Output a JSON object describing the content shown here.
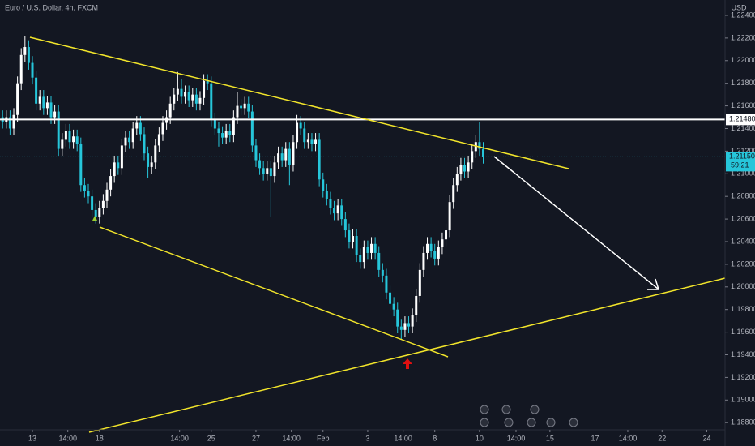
{
  "chart_data": {
    "type": "candlestick",
    "title": "Euro / U.S. Dollar, 4h, FXCM",
    "currency": "USD",
    "colors": {
      "up": "#ffffff",
      "down": "#26c6da"
    },
    "xlim": [
      -0.7,
      193.9
    ],
    "xticks": [
      {
        "value": 8,
        "label": "13"
      },
      {
        "value": 17.5,
        "label": "14:00"
      },
      {
        "value": 26,
        "label": "18"
      },
      {
        "value": 47.5,
        "label": "14:00"
      },
      {
        "value": 56,
        "label": "25"
      },
      {
        "value": 68,
        "label": "27"
      },
      {
        "value": 77.5,
        "label": "14:00"
      },
      {
        "value": 86,
        "label": "Feb"
      },
      {
        "value": 98,
        "label": "3"
      },
      {
        "value": 107.5,
        "label": "14:00"
      },
      {
        "value": 116,
        "label": "8"
      },
      {
        "value": 128,
        "label": "10"
      },
      {
        "value": 137.8,
        "label": "14:00"
      },
      {
        "value": 146.9,
        "label": "15"
      },
      {
        "value": 159,
        "label": "17"
      },
      {
        "value": 167.8,
        "label": "14:00"
      },
      {
        "value": 177,
        "label": "22"
      },
      {
        "value": 189,
        "label": "24"
      }
    ],
    "ylim": [
      1.18737,
      1.22536
    ],
    "yticks": [
      {
        "value": 1.224,
        "label": "1.22400"
      },
      {
        "value": 1.222,
        "label": "1.22200"
      },
      {
        "value": 1.22,
        "label": "1.22000"
      },
      {
        "value": 1.218,
        "label": "1.21800"
      },
      {
        "value": 1.216,
        "label": "1.21600"
      },
      {
        "value": 1.214,
        "label": "1.21400"
      },
      {
        "value": 1.212,
        "label": "1.21200"
      },
      {
        "value": 1.21,
        "label": "1.21000"
      },
      {
        "value": 1.208,
        "label": "1.20800"
      },
      {
        "value": 1.206,
        "label": "1.20600"
      },
      {
        "value": 1.204,
        "label": "1.20400"
      },
      {
        "value": 1.202,
        "label": "1.20200"
      },
      {
        "value": 1.2,
        "label": "1.20000"
      },
      {
        "value": 1.198,
        "label": "1.19800"
      },
      {
        "value": 1.196,
        "label": "1.19600"
      },
      {
        "value": 1.194,
        "label": "1.19400"
      },
      {
        "value": 1.192,
        "label": "1.19200"
      },
      {
        "value": 1.19,
        "label": "1.19000"
      },
      {
        "value": 1.188,
        "label": "1.18800"
      }
    ],
    "horizontal_line": {
      "value": 1.2148,
      "label": "1.21480"
    },
    "last_price": {
      "value": 1.2115,
      "label": "1.21150",
      "countdown": "59:21"
    },
    "open": [
      1.215,
      1.2146,
      1.215,
      1.214,
      1.2152,
      1.218,
      1.2205,
      1.2212,
      1.2198,
      1.2185,
      1.2162,
      1.2168,
      1.2158,
      1.2163,
      1.215,
      1.2155,
      1.2122,
      1.213,
      1.2138,
      1.2128,
      1.2133,
      1.2126,
      1.209,
      1.2085,
      1.208,
      1.2068,
      1.2062,
      1.207,
      1.2076,
      1.2086,
      1.2098,
      1.211,
      1.2105,
      1.2125,
      1.2132,
      1.2128,
      1.214,
      1.2145,
      1.2135,
      1.2118,
      1.2106,
      1.211,
      1.2125,
      1.2135,
      1.2145,
      1.215,
      1.2162,
      1.217,
      1.2175,
      1.2168,
      1.2172,
      1.2165,
      1.217,
      1.2162,
      1.2167,
      1.2182,
      1.218,
      1.2148,
      1.214,
      1.2136,
      1.2132,
      1.2138,
      1.2134,
      1.215,
      1.216,
      1.2158,
      1.2162,
      1.2155,
      1.2125,
      1.2112,
      1.2105,
      1.21,
      1.2105,
      1.2098,
      1.211,
      1.2118,
      1.2112,
      1.2122,
      1.2108,
      1.2128,
      1.2145,
      1.214,
      1.2128,
      1.213,
      1.2126,
      1.213,
      1.2095,
      1.2085,
      1.2078,
      1.207,
      1.2065,
      1.2072,
      1.206,
      1.205,
      1.204,
      1.2045,
      1.2028,
      1.2022,
      1.2035,
      1.203,
      1.2038,
      1.203,
      1.2015,
      1.201,
      1.1995,
      1.1985,
      1.198,
      1.1965,
      1.1962,
      1.1968,
      1.1965,
      1.1975,
      1.1992,
      1.2015,
      1.203,
      1.2038,
      1.2032,
      1.2025,
      1.2035,
      1.2042,
      1.205,
      1.2075,
      1.209,
      1.21,
      1.2108,
      1.2102,
      1.211,
      1.212,
      1.2128,
      1.2122
    ],
    "high": [
      1.2156,
      1.2156,
      1.2156,
      1.2158,
      1.2186,
      1.2211,
      1.2222,
      1.2218,
      1.2204,
      1.2191,
      1.2174,
      1.2174,
      1.2169,
      1.2169,
      1.2161,
      1.2161,
      1.2136,
      1.2144,
      1.2144,
      1.2139,
      1.2139,
      1.2132,
      1.2096,
      1.2091,
      1.2086,
      1.2074,
      1.2076,
      1.2082,
      1.2092,
      1.2104,
      1.2116,
      1.2116,
      1.2131,
      1.2138,
      1.2138,
      1.2146,
      1.2151,
      1.2151,
      1.2141,
      1.2124,
      1.2116,
      1.2131,
      1.2141,
      1.2151,
      1.2156,
      1.2168,
      1.2176,
      1.219,
      1.2184,
      1.2178,
      1.2178,
      1.2176,
      1.2176,
      1.2173,
      1.2188,
      1.2188,
      1.2186,
      1.2154,
      1.2146,
      1.2142,
      1.2144,
      1.2144,
      1.2156,
      1.2172,
      1.2166,
      1.2168,
      1.2168,
      1.2161,
      1.2131,
      1.2118,
      1.2111,
      1.2111,
      1.2111,
      1.2116,
      1.2124,
      1.2124,
      1.2128,
      1.2128,
      1.2134,
      1.2152,
      1.2151,
      1.2146,
      1.2136,
      1.2136,
      1.2136,
      1.2136,
      1.2101,
      1.2091,
      1.2084,
      1.2076,
      1.2078,
      1.2078,
      1.2066,
      1.2056,
      1.2051,
      1.2051,
      1.2034,
      1.2041,
      1.2041,
      1.2044,
      1.2044,
      1.2036,
      1.2021,
      1.2016,
      1.2001,
      1.1991,
      1.1986,
      1.1971,
      1.1974,
      1.1974,
      1.1981,
      1.1998,
      1.2021,
      1.2036,
      1.2044,
      1.2044,
      1.2038,
      1.2041,
      1.2048,
      1.2056,
      1.2081,
      1.2096,
      1.2106,
      1.2114,
      1.2114,
      1.2116,
      1.2126,
      1.2134,
      1.2146,
      1.2128
    ],
    "low": [
      1.214,
      1.214,
      1.2134,
      1.2134,
      1.2146,
      1.2174,
      1.2199,
      1.2192,
      1.2179,
      1.2156,
      1.2156,
      1.2152,
      1.2152,
      1.2144,
      1.2144,
      1.2116,
      1.2116,
      1.2124,
      1.2122,
      1.2122,
      1.212,
      1.2084,
      1.2079,
      1.2074,
      1.2062,
      1.2056,
      1.2056,
      1.2064,
      1.207,
      1.208,
      1.2092,
      1.2099,
      1.2099,
      1.2119,
      1.2122,
      1.2122,
      1.2134,
      1.2129,
      1.2112,
      1.2096,
      1.21,
      1.2104,
      1.2119,
      1.2129,
      1.2139,
      1.2144,
      1.2156,
      1.2164,
      1.2162,
      1.2162,
      1.2159,
      1.2159,
      1.2156,
      1.2156,
      1.2161,
      1.2174,
      1.2142,
      1.2134,
      1.2124,
      1.2126,
      1.2126,
      1.2128,
      1.2128,
      1.2144,
      1.2152,
      1.2152,
      1.2149,
      1.2119,
      1.2106,
      1.2099,
      1.2094,
      1.2094,
      1.2062,
      1.2092,
      1.2104,
      1.2106,
      1.2106,
      1.209,
      1.2102,
      1.2122,
      1.2134,
      1.2122,
      1.2122,
      1.212,
      1.212,
      1.2089,
      1.2079,
      1.2072,
      1.2064,
      1.2059,
      1.2059,
      1.2054,
      1.2044,
      1.2034,
      1.2034,
      1.2022,
      1.2016,
      1.2016,
      1.2024,
      1.2024,
      1.2024,
      1.2009,
      1.2004,
      1.1989,
      1.1979,
      1.1974,
      1.1959,
      1.1954,
      1.1956,
      1.1959,
      1.1959,
      1.1969,
      1.1986,
      1.2009,
      1.2024,
      1.2026,
      1.2019,
      1.2019,
      1.2029,
      1.2036,
      1.2044,
      1.2069,
      1.2084,
      1.2094,
      1.2096,
      1.2096,
      1.2104,
      1.2114,
      1.2116,
      1.2109
    ],
    "close": [
      1.2146,
      1.215,
      1.214,
      1.2152,
      1.218,
      1.2205,
      1.2212,
      1.2198,
      1.2185,
      1.2162,
      1.2168,
      1.2158,
      1.2163,
      1.215,
      1.2155,
      1.2122,
      1.213,
      1.2138,
      1.2128,
      1.2133,
      1.2126,
      1.209,
      1.2085,
      1.208,
      1.2068,
      1.2062,
      1.207,
      1.2076,
      1.2086,
      1.2098,
      1.211,
      1.2105,
      1.2125,
      1.2132,
      1.2128,
      1.214,
      1.2145,
      1.2135,
      1.2118,
      1.2106,
      1.211,
      1.2125,
      1.2135,
      1.2145,
      1.215,
      1.2162,
      1.217,
      1.2175,
      1.2168,
      1.2172,
      1.2165,
      1.217,
      1.2162,
      1.2167,
      1.2182,
      1.218,
      1.2148,
      1.214,
      1.2136,
      1.2132,
      1.2138,
      1.2134,
      1.215,
      1.216,
      1.2158,
      1.2162,
      1.2155,
      1.2125,
      1.2112,
      1.2105,
      1.21,
      1.2105,
      1.2098,
      1.211,
      1.2118,
      1.2112,
      1.2122,
      1.2108,
      1.2128,
      1.2145,
      1.214,
      1.2128,
      1.213,
      1.2126,
      1.213,
      1.2095,
      1.2085,
      1.2078,
      1.207,
      1.2065,
      1.2072,
      1.206,
      1.205,
      1.204,
      1.2045,
      1.2028,
      1.2022,
      1.2035,
      1.203,
      1.2038,
      1.203,
      1.2015,
      1.201,
      1.1995,
      1.1985,
      1.198,
      1.1965,
      1.1962,
      1.1968,
      1.1965,
      1.1975,
      1.1992,
      1.2015,
      1.203,
      1.2038,
      1.2032,
      1.2025,
      1.2035,
      1.2042,
      1.205,
      1.2075,
      1.209,
      1.21,
      1.2108,
      1.2102,
      1.211,
      1.212,
      1.2128,
      1.2122,
      1.2115
    ]
  }
}
